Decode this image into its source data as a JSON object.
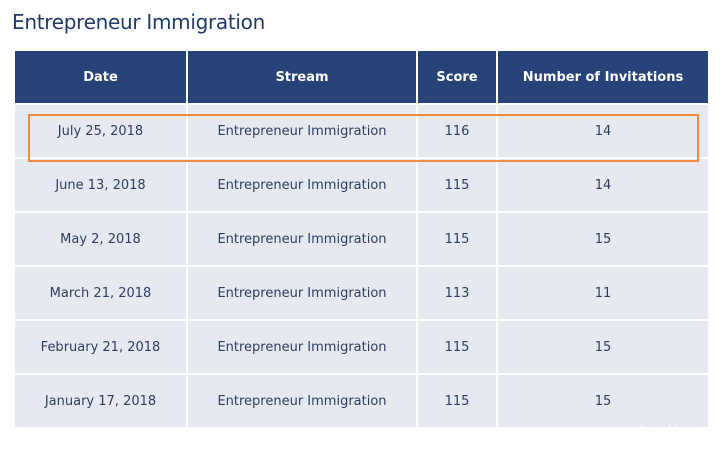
{
  "title": "Entrepreneur Immigration",
  "table": {
    "headers": [
      "Date",
      "Stream",
      "Score",
      "Number of Invitations"
    ],
    "rows": [
      [
        "July 25, 2018",
        "Entrepreneur Immigration",
        "116",
        "14"
      ],
      [
        "June 13, 2018",
        "Entrepreneur Immigration",
        "115",
        "14"
      ],
      [
        "May 2, 2018",
        "Entrepreneur Immigration",
        "115",
        "15"
      ],
      [
        "March 21, 2018",
        "Entrepreneur Immigration",
        "113",
        "11"
      ],
      [
        "February 21, 2018",
        "Entrepreneur Immigration",
        "115",
        "15"
      ],
      [
        "January 17, 2018",
        "Entrepreneur Immigration",
        "115",
        "15"
      ]
    ],
    "highlighted_row": 0
  },
  "colors": {
    "header_bg": "#26437a",
    "row_bg": "#e6e9ef",
    "highlight": "#f08a3c",
    "title": "#1f3a6b"
  },
  "watermark": "tipdj.co"
}
